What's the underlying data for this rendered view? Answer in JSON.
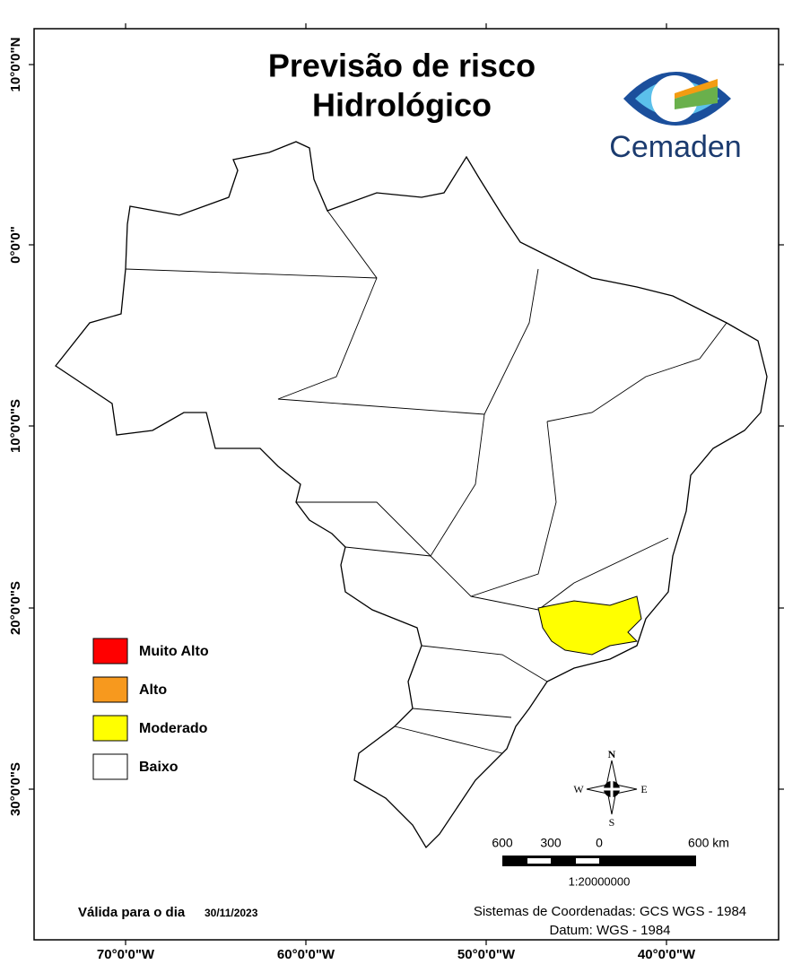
{
  "title_lines": [
    "Previsão de risco",
    "Hidrológico"
  ],
  "logo_text": "Cemaden",
  "legend": [
    {
      "label": "Muito Alto",
      "color": "#ff0000"
    },
    {
      "label": "Alto",
      "color": "#f7991e"
    },
    {
      "label": "Moderado",
      "color": "#ffff00"
    },
    {
      "label": "Baixo",
      "color": "#ffffff"
    }
  ],
  "x_labels": [
    "70°0'0\"W",
    "60°0'0\"W",
    "50°0'0\"W",
    "40°0'0\"W"
  ],
  "y_labels": [
    "10°0'0\"N",
    "0°0'0\"",
    "10°0'0\"S",
    "20°0'0\"S",
    "30°0'0\"S"
  ],
  "compass": {
    "n": "N",
    "s": "S",
    "e": "E",
    "w": "W"
  },
  "scale": {
    "labels": [
      "600",
      "300",
      "0",
      "600 km"
    ],
    "ratio": "1:20000000"
  },
  "validity": {
    "label": "Válida para o dia",
    "date": "30/11/2023"
  },
  "coordinates": [
    "Sistemas de Coordenadas: GCS WGS - 1984",
    "Datum: WGS - 1984"
  ]
}
